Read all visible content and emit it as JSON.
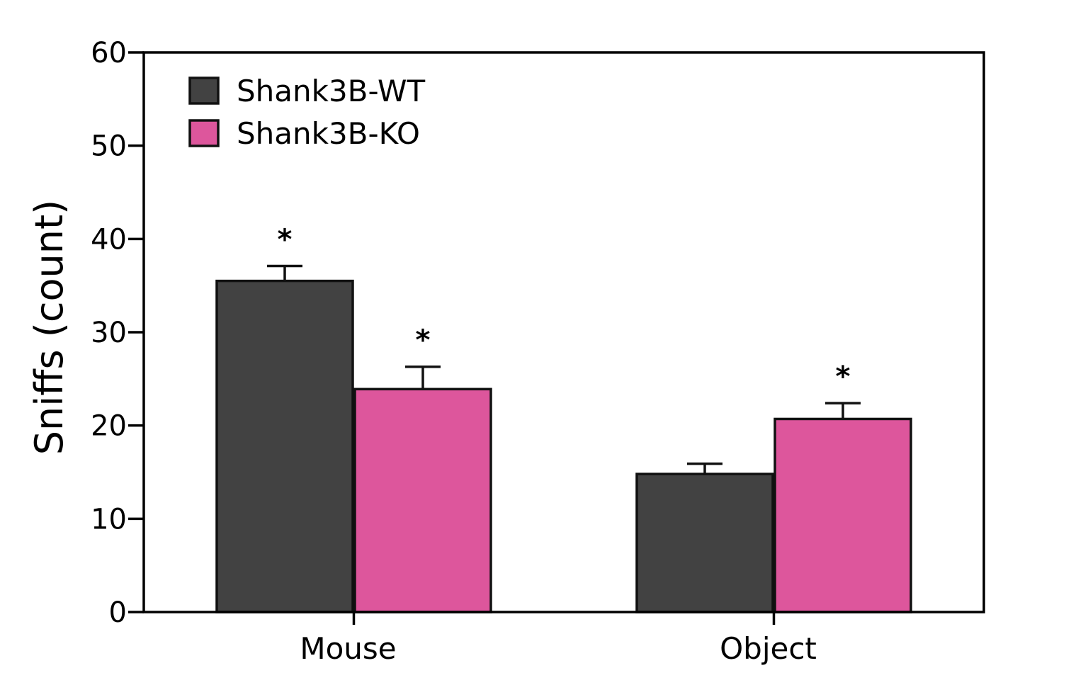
{
  "chart_data": {
    "type": "bar",
    "ylabel": "Sniffs (count)",
    "xlabel": "",
    "ylim": [
      0,
      60
    ],
    "yticks": [
      0,
      10,
      20,
      30,
      40,
      50,
      60
    ],
    "categories": [
      "Mouse",
      "Object"
    ],
    "series": [
      {
        "name": "Shank3B-WT",
        "color": "#424242",
        "values": [
          35.5,
          14.8
        ],
        "error": [
          1.6,
          1.1
        ],
        "significance": [
          "*",
          ""
        ]
      },
      {
        "name": "Shank3B-KO",
        "color": "#dd569c",
        "values": [
          23.9,
          20.7
        ],
        "error": [
          2.4,
          1.7
        ],
        "significance": [
          "*",
          "*"
        ]
      }
    ],
    "legend_position": "top-left",
    "grid": false
  }
}
